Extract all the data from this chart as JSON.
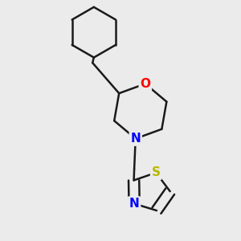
{
  "background_color": "#ebebeb",
  "bond_color": "#1a1a1a",
  "bond_width": 1.8,
  "atom_colors": {
    "O": "#ff0000",
    "N": "#0000ff",
    "S": "#b8b800",
    "C": "#1a1a1a"
  }
}
